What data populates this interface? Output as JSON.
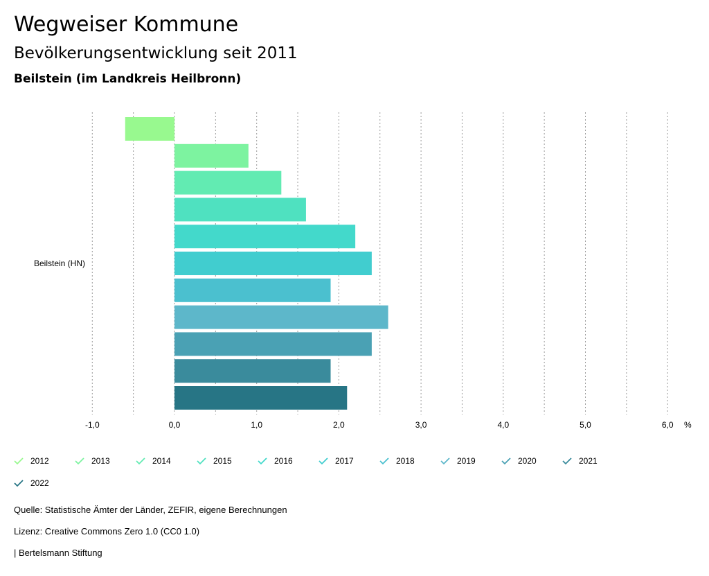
{
  "header": {
    "title": "Wegweiser Kommune",
    "subtitle": "Bevölkerungsentwicklung seit 2011",
    "region": "Beilstein (im Landkreis Heilbronn)"
  },
  "chart_data": {
    "type": "bar",
    "orientation": "horizontal",
    "categories": [
      "Beilstein (HN)"
    ],
    "series": [
      {
        "name": "2012",
        "values": [
          -0.6
        ],
        "color": "#98f98f"
      },
      {
        "name": "2013",
        "values": [
          0.9
        ],
        "color": "#7df3a0"
      },
      {
        "name": "2014",
        "values": [
          1.3
        ],
        "color": "#62ebb2"
      },
      {
        "name": "2015",
        "values": [
          1.6
        ],
        "color": "#4fe1c0"
      },
      {
        "name": "2016",
        "values": [
          2.2
        ],
        "color": "#43d9cb"
      },
      {
        "name": "2017",
        "values": [
          2.4
        ],
        "color": "#41cdcf"
      },
      {
        "name": "2018",
        "values": [
          1.9
        ],
        "color": "#4bc0cf"
      },
      {
        "name": "2019",
        "values": [
          2.6
        ],
        "color": "#5db7ca"
      },
      {
        "name": "2020",
        "values": [
          2.4
        ],
        "color": "#4aa1b4"
      },
      {
        "name": "2021",
        "values": [
          1.9
        ],
        "color": "#3a8b9c"
      },
      {
        "name": "2022",
        "values": [
          2.1
        ],
        "color": "#277585"
      }
    ],
    "xlim": [
      -1.0,
      6.0
    ],
    "xticks": [
      "-1,0",
      "0,0",
      "1,0",
      "2,0",
      "3,0",
      "4,0",
      "5,0",
      "6,0"
    ],
    "xunit": "%",
    "grid": true,
    "legend_position": "bottom"
  },
  "footer": {
    "source": "Quelle: Statistische Ämter der Länder, ZEFIR, eigene Berechnungen",
    "license": "Lizenz: Creative Commons Zero 1.0 (CC0 1.0)",
    "brand": "| Bertelsmann Stiftung"
  }
}
